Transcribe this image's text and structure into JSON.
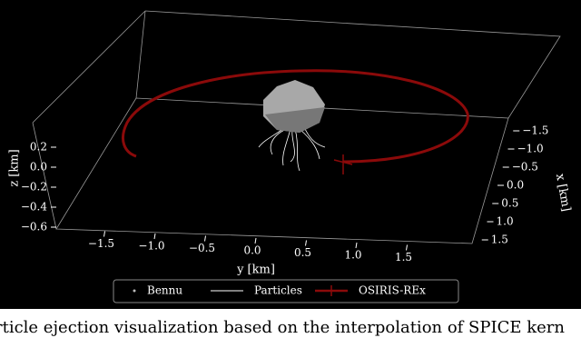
{
  "chart_data": {
    "type": "3d-trajectory",
    "xlabel": "x [km]",
    "ylabel": "y [km]",
    "zlabel": "z [km]",
    "xlim": [
      -1.5,
      1.5
    ],
    "ylim": [
      -1.8,
      1.8
    ],
    "zlim": [
      -0.6,
      0.3
    ],
    "xticks": [
      {
        "value": -1.5,
        "label": "−1.5"
      },
      {
        "value": -1.0,
        "label": "−1.0"
      },
      {
        "value": -0.5,
        "label": "−0.5"
      },
      {
        "value": 0.0,
        "label": "0.0"
      },
      {
        "value": 0.5,
        "label": "0.5"
      },
      {
        "value": 1.0,
        "label": "1.0"
      },
      {
        "value": 1.5,
        "label": "1.5"
      }
    ],
    "yticks": [
      {
        "value": -1.5,
        "label": "−1.5"
      },
      {
        "value": -1.0,
        "label": "−1.0"
      },
      {
        "value": -0.5,
        "label": "−0.5"
      },
      {
        "value": 0.0,
        "label": "0.0"
      },
      {
        "value": 0.5,
        "label": "0.5"
      },
      {
        "value": 1.0,
        "label": "1.0"
      },
      {
        "value": 1.5,
        "label": "1.5"
      }
    ],
    "zticks": [
      0.2,
      {
        "value": 0.0,
        "label": "0.0"
      },
      {
        "value": -0.2,
        "label": "−0.2"
      },
      {
        "value": -0.4,
        "label": "−0.4"
      },
      {
        "value": -0.6,
        "label": "−0.6"
      }
    ],
    "series": [
      {
        "name": "Bennu",
        "color": "#bbbbbb"
      },
      {
        "name": "Particles",
        "color": "#ffffff"
      },
      {
        "name": "OSIRIS-REx",
        "color": "#8b0a0a"
      }
    ]
  },
  "caption": "rticle ejection visualization based on the interpolation of SPICE kern"
}
